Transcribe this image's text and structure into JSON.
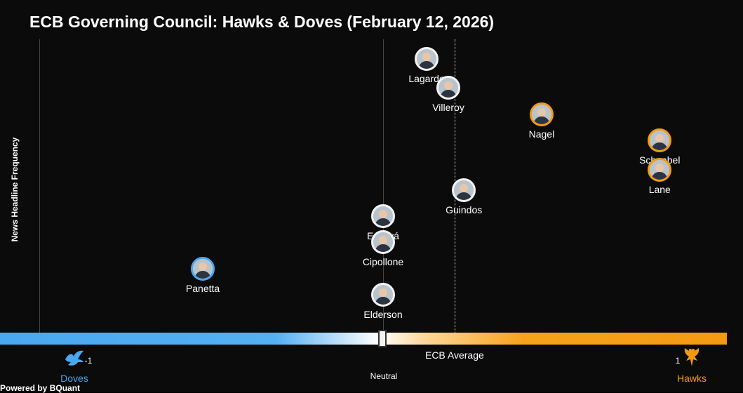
{
  "title": "ECB Governing Council: Hawks & Doves (February 12, 2026)",
  "ylabel": "News Headline Frequency",
  "footer": "Powered by BQuant",
  "colors": {
    "dove": "#4aa8f0",
    "hawk": "#f39a12",
    "background": "#0b0b0b",
    "neutral_ring": "#f2f2f2"
  },
  "axis": {
    "min_label": "-1",
    "max_label": "1",
    "dove_label": "Doves",
    "hawk_label": "Hawks",
    "neutral_label": "Neutral",
    "average_label": "ECB Average",
    "dove_icon": "dove-icon",
    "hawk_icon": "hawk-icon"
  },
  "chart_data": {
    "type": "scatter",
    "title": "ECB Governing Council: Hawks & Doves (February 12, 2026)",
    "xlabel": "",
    "ylabel": "News Headline Frequency",
    "xlim": [
      -1,
      1
    ],
    "ecb_average": 0.23,
    "grid": false,
    "points": [
      {
        "name": "Lagarde",
        "x": 0.14,
        "y": 0.94,
        "tone": "neutral"
      },
      {
        "name": "Villeroy",
        "x": 0.21,
        "y": 0.84,
        "tone": "neutral"
      },
      {
        "name": "Nagel",
        "x": 0.51,
        "y": 0.75,
        "tone": "hawk"
      },
      {
        "name": "Schnabel",
        "x": 0.89,
        "y": 0.66,
        "tone": "hawk"
      },
      {
        "name": "Lane",
        "x": 0.89,
        "y": 0.56,
        "tone": "hawk"
      },
      {
        "name": "Guindos",
        "x": 0.26,
        "y": 0.49,
        "tone": "neutral"
      },
      {
        "name": "Escrivá",
        "x": 0.0,
        "y": 0.4,
        "tone": "neutral"
      },
      {
        "name": "Cipollone",
        "x": 0.0,
        "y": 0.31,
        "tone": "neutral"
      },
      {
        "name": "Panetta",
        "x": -0.58,
        "y": 0.22,
        "tone": "dove"
      },
      {
        "name": "Elderson",
        "x": 0.0,
        "y": 0.13,
        "tone": "neutral"
      }
    ]
  }
}
